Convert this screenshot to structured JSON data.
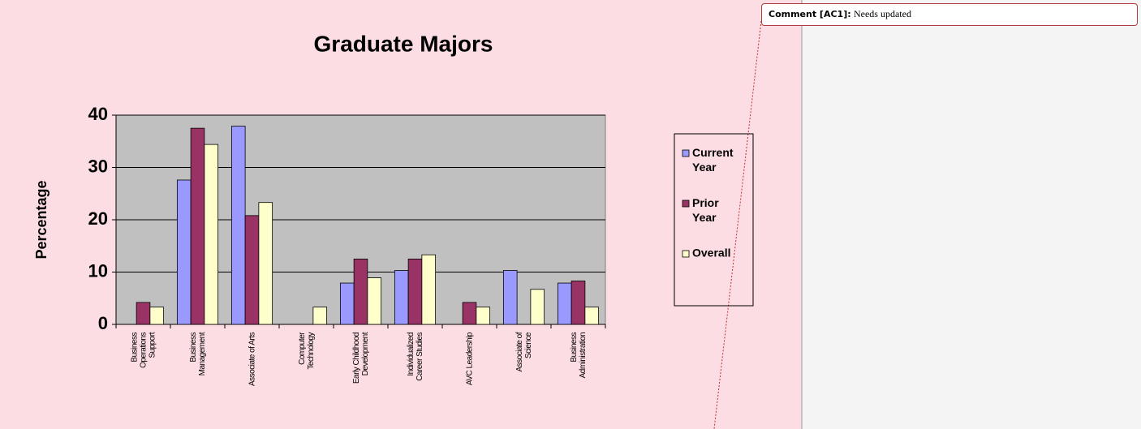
{
  "chart_data": {
    "type": "bar",
    "title": "Graduate Majors",
    "y_label": "Percentage",
    "categories": [
      "Business Operations Support",
      "Business Management",
      "Associate of Arts",
      "Computer Technology",
      "Early Childhood Development",
      "Individualized Career Studies",
      "AVC Leadership",
      "Associate of Science",
      "Business Administration"
    ],
    "series": [
      {
        "name": "Current Year",
        "color": "#9999ff",
        "values": [
          0,
          27.6,
          37.9,
          0,
          7.9,
          10.3,
          0,
          10.3,
          7.9
        ]
      },
      {
        "name": "Prior Year",
        "color": "#993366",
        "values": [
          4.2,
          37.5,
          20.8,
          0,
          12.5,
          12.5,
          4.2,
          0,
          8.3
        ]
      },
      {
        "name": "Overall",
        "color": "#ffffcc",
        "values": [
          3.3,
          34.4,
          23.3,
          3.3,
          8.9,
          13.3,
          3.3,
          6.7,
          3.3
        ]
      }
    ],
    "ylim": [
      0,
      40
    ],
    "yticks": [
      0,
      10,
      20,
      30,
      40
    ],
    "grid": true,
    "legend": "right"
  },
  "comment": {
    "label": "Comment [AC1]:",
    "text": "Needs updated"
  }
}
